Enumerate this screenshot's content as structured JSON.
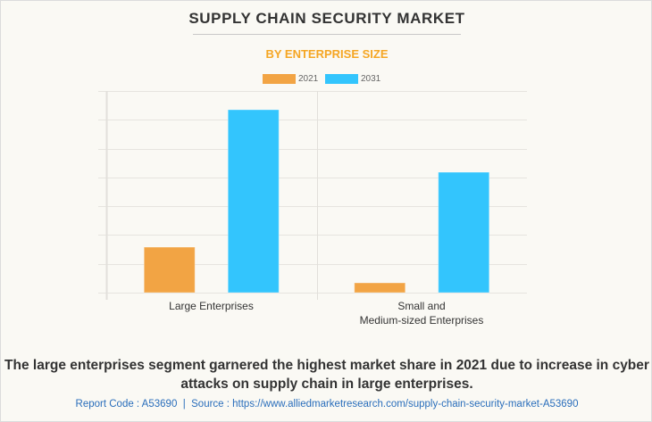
{
  "header": {
    "title": "SUPPLY CHAIN SECURITY MARKET",
    "subtitle": "BY ENTERPRISE SIZE"
  },
  "colors": {
    "series_2021": "#f2a444",
    "series_2031": "#33c5fd",
    "subtitle": "#f5a623",
    "gridline": "#e6e4df"
  },
  "chart_data": {
    "type": "bar",
    "title": "SUPPLY CHAIN SECURITY MARKET",
    "subtitle": "BY ENTERPRISE SIZE",
    "categories": [
      "Large Enterprises",
      "Small and\nMedium-sized Enterprises"
    ],
    "category_lines": [
      [
        "Large Enterprises"
      ],
      [
        "Small and",
        "Medium-sized Enterprises"
      ]
    ],
    "series": [
      {
        "name": "2021",
        "values": [
          1.58,
          0.34
        ]
      },
      {
        "name": "2031",
        "values": [
          6.35,
          4.18
        ]
      }
    ],
    "xlabel": "",
    "ylabel": "",
    "ylim": [
      0,
      7
    ],
    "y_ticks_labeled": false,
    "grid": true,
    "legend_position": "top-center",
    "value_units": "relative (gridline intervals; axis unlabeled)"
  },
  "summary": "The large enterprises segment garnered the highest market share in 2021 due to increase in cyber attacks on supply chain in large enterprises.",
  "footer": {
    "report_code": "Report Code : A53690",
    "separator": "  |  ",
    "source": "Source : https://www.alliedmarketresearch.com/supply-chain-security-market-A53690"
  }
}
